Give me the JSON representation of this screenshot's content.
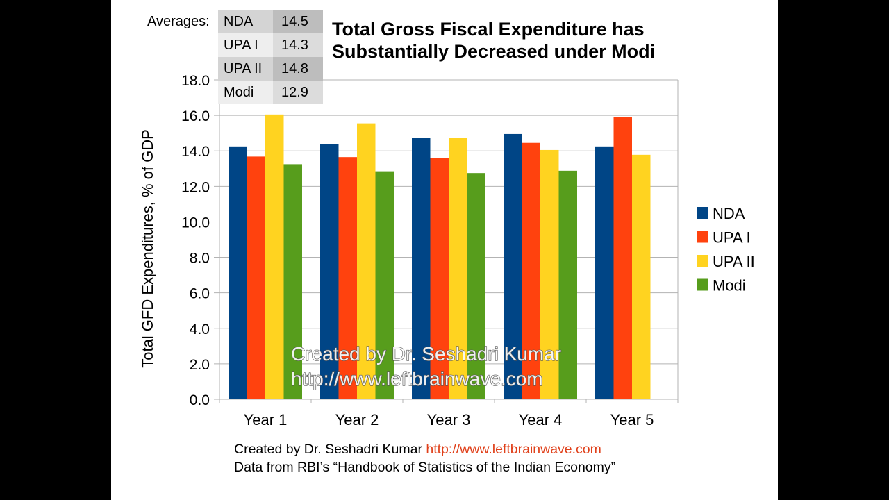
{
  "averages": {
    "label": "Averages:",
    "rows": [
      {
        "name": "NDA",
        "value": "14.5"
      },
      {
        "name": "UPA I",
        "value": "14.3"
      },
      {
        "name": "UPA II",
        "value": "14.8"
      },
      {
        "name": "Modi",
        "value": "12.9"
      }
    ]
  },
  "chart_data": {
    "type": "bar",
    "title": "Total Gross Fiscal Expenditure has Substantially Decreased under Modi",
    "title_lines": [
      "Total Gross Fiscal Expenditure has",
      "Substantially Decreased under Modi"
    ],
    "ylabel": "Total GFD Expenditures, % of GDP",
    "xlabel": "",
    "categories": [
      "Year 1",
      "Year 2",
      "Year 3",
      "Year 4",
      "Year 5"
    ],
    "ylim": [
      0,
      18
    ],
    "yticks": [
      0,
      2,
      4,
      6,
      8,
      10,
      12,
      14,
      16,
      18
    ],
    "ytick_labels": [
      "0.0",
      "2.0",
      "4.0",
      "6.0",
      "8.0",
      "10.0",
      "12.0",
      "14.0",
      "16.0",
      "18.0"
    ],
    "grid": true,
    "legend_position": "right",
    "series": [
      {
        "name": "NDA",
        "color": "#004586",
        "values": [
          14.25,
          14.4,
          14.72,
          14.95,
          14.25
        ]
      },
      {
        "name": "UPA I",
        "color": "#ff420e",
        "values": [
          13.68,
          13.65,
          13.6,
          14.45,
          15.92
        ]
      },
      {
        "name": "UPA II",
        "color": "#ffd320",
        "values": [
          16.05,
          15.55,
          14.75,
          14.05,
          13.78
        ]
      },
      {
        "name": "Modi",
        "color": "#579d1c",
        "values": [
          13.25,
          12.85,
          12.75,
          12.88,
          null
        ]
      }
    ],
    "watermark": [
      "Created by Dr. Seshadri Kumar",
      "http://www.leftbrainwave.com"
    ]
  },
  "footer": {
    "line1_text": "Created by Dr. Seshadri Kumar ",
    "line1_link": "http://www.leftbrainwave.com",
    "line2": "Data from RBI’s “Handbook of Statistics of the Indian Economy”"
  }
}
